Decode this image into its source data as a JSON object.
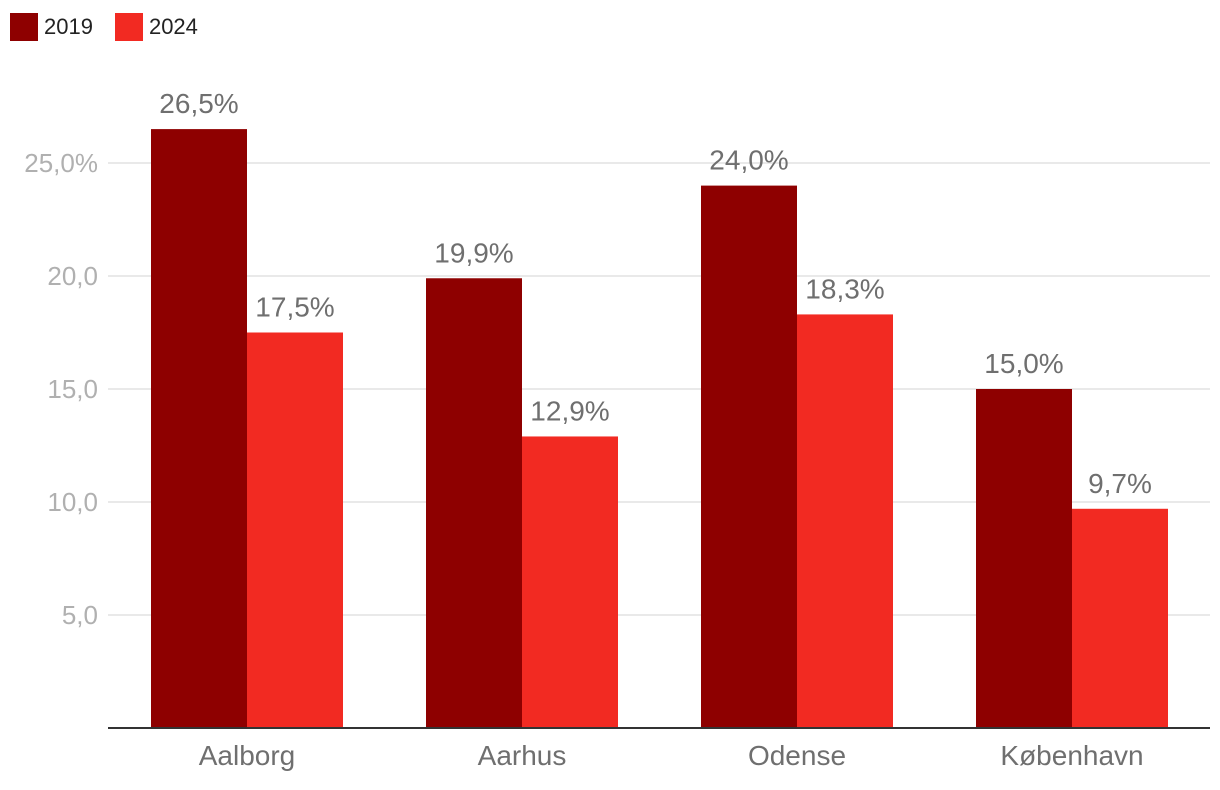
{
  "colors": {
    "series_2019": "#8e0000",
    "series_2024": "#f22a22",
    "grid": "#e2e2e2",
    "axis": "#333333"
  },
  "legend": {
    "items": [
      {
        "label": "2019"
      },
      {
        "label": "2024"
      }
    ]
  },
  "chart_data": {
    "type": "bar",
    "categories": [
      "Aalborg",
      "Aarhus",
      "Odense",
      "København"
    ],
    "series": [
      {
        "name": "2019",
        "values": [
          26.5,
          19.9,
          24.0,
          15.0
        ],
        "labels": [
          "26,5%",
          "19,9%",
          "24,0%",
          "15,0%"
        ]
      },
      {
        "name": "2024",
        "values": [
          17.5,
          12.9,
          18.3,
          9.7
        ],
        "labels": [
          "17,5%",
          "12,9%",
          "18,3%",
          "9,7%"
        ]
      }
    ],
    "yticks": [
      {
        "value": 5,
        "label": "5,0"
      },
      {
        "value": 10,
        "label": "10,0"
      },
      {
        "value": 15,
        "label": "15,0"
      },
      {
        "value": 20,
        "label": "20,0"
      },
      {
        "value": 25,
        "label": "25,0%"
      }
    ],
    "ylim": [
      0,
      28
    ],
    "grid": true,
    "legend_position": "top-left"
  }
}
